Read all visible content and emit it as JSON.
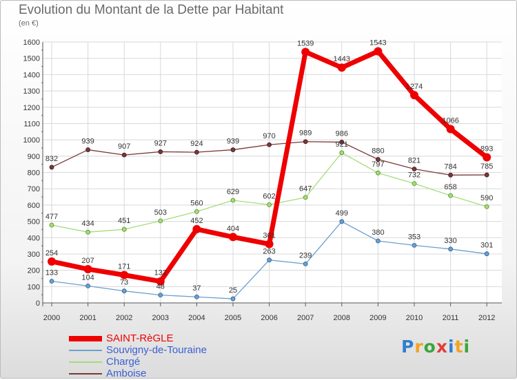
{
  "title": "Evolution du Montant de la Dette par Habitant",
  "subtitle": "(en €)",
  "logo": {
    "text": "Proxiti",
    "colors": [
      "#2f7fd1",
      "#f2a323",
      "#3aa63a",
      "#e23c3c",
      "#2f7fd1",
      "#f2a323",
      "#3aa63a"
    ]
  },
  "chart_data": {
    "type": "line",
    "title": "Evolution du Montant de la Dette par Habitant",
    "ylabel": "(en €)",
    "ylim": [
      0,
      1600
    ],
    "y_ticks": [
      0,
      100,
      200,
      300,
      400,
      500,
      600,
      700,
      800,
      900,
      1000,
      1100,
      1200,
      1300,
      1400,
      1500,
      1600
    ],
    "x": [
      "2000",
      "2001",
      "2002",
      "2003",
      "2004",
      "2005",
      "2006",
      "2007",
      "2008",
      "2009",
      "2010",
      "2011",
      "2012"
    ],
    "grid": true,
    "legend_position": "bottom-left",
    "series": [
      {
        "name": "SAINT-RèGLE",
        "color": "#ee0000",
        "values": [
          254,
          207,
          171,
          132,
          452,
          404,
          361,
          1539,
          1443,
          1543,
          1274,
          1066,
          893
        ]
      },
      {
        "name": "Souvigny-de-Touraine",
        "color": "#6a9fcf",
        "values": [
          133,
          104,
          73,
          48,
          37,
          25,
          263,
          239,
          499,
          380,
          353,
          330,
          301
        ]
      },
      {
        "name": "Chargé",
        "color": "#a6dc7a",
        "values": [
          477,
          434,
          451,
          503,
          560,
          629,
          602,
          647,
          921,
          797,
          732,
          658,
          590
        ]
      },
      {
        "name": "Amboise",
        "color": "#7a3838",
        "values": [
          832,
          939,
          907,
          927,
          924,
          939,
          970,
          989,
          986,
          880,
          821,
          784,
          785
        ]
      }
    ]
  }
}
